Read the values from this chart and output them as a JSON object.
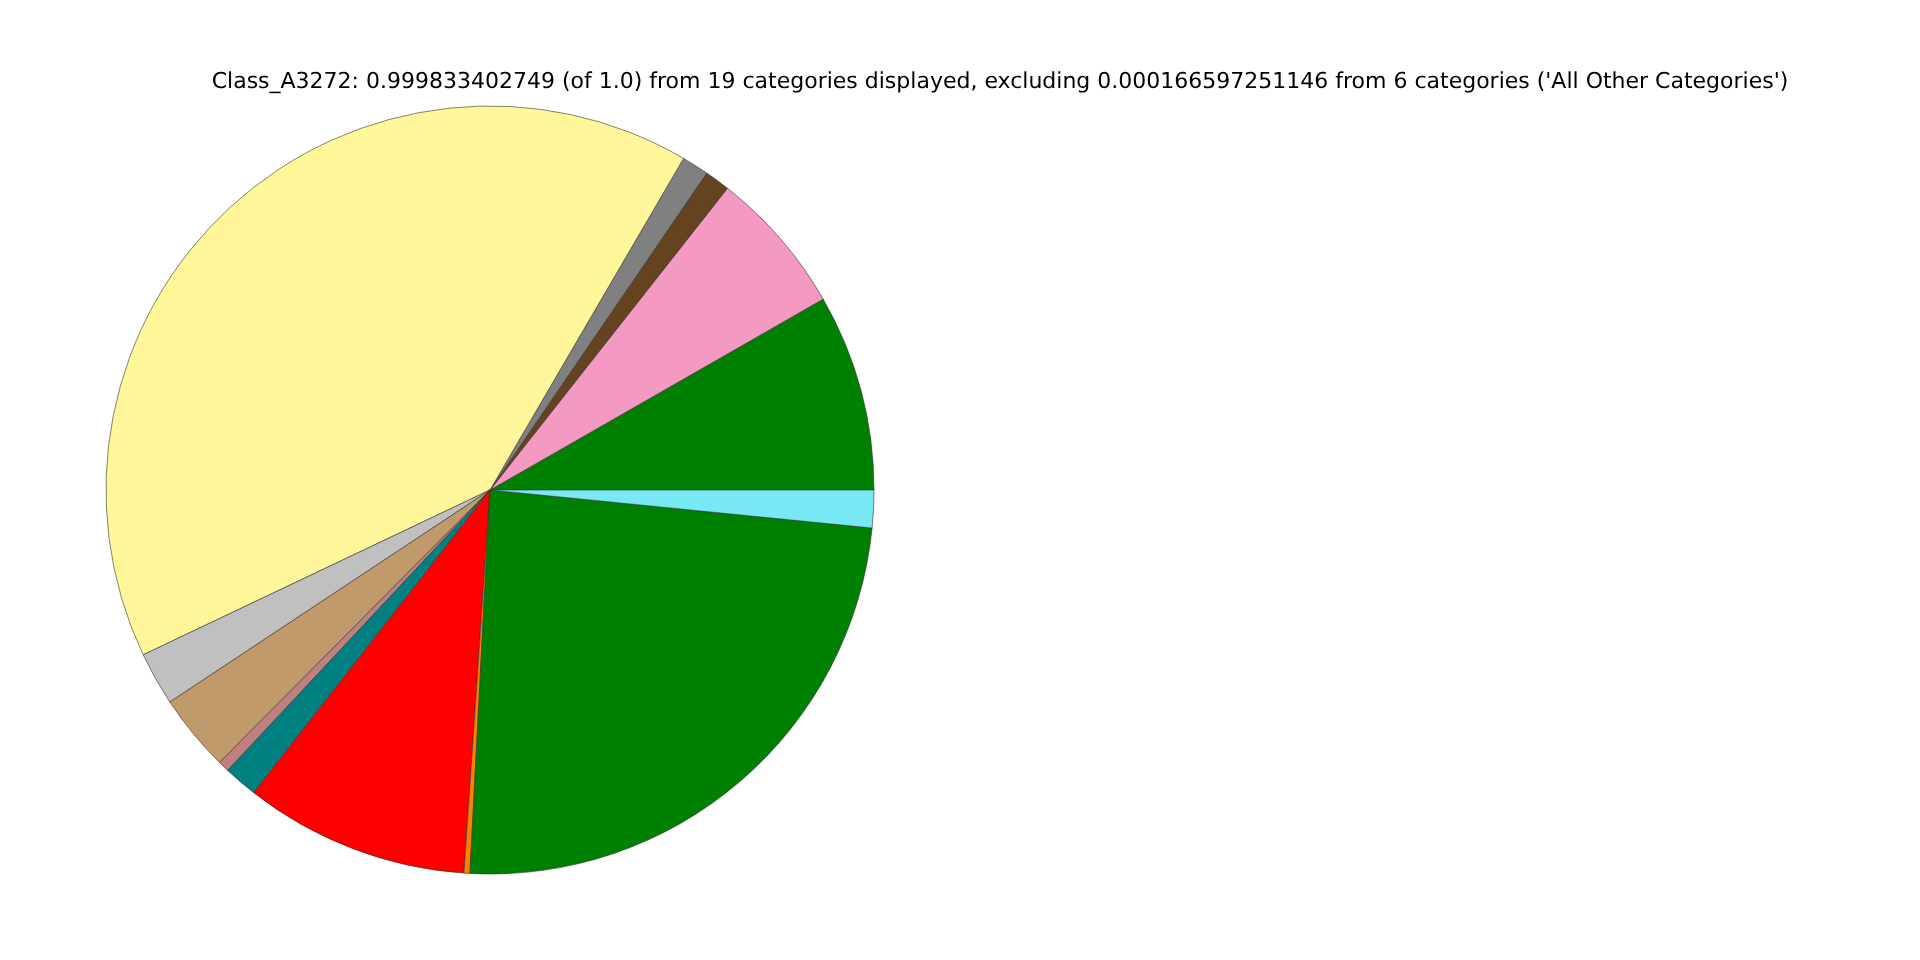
{
  "chart_data": {
    "type": "pie",
    "title": "Class_A3272: 0.999833402749 (of 1.0) from 19 categories displayed, excluding 0.000166597251146 from 6 categories ('All Other Categories')",
    "categories": [
      null,
      null,
      null,
      null,
      null,
      null,
      null,
      null,
      null,
      null,
      null,
      null,
      null
    ],
    "values": [
      8.28,
      6.11,
      1.06,
      1.14,
      40.47,
      2.25,
      3.25,
      0.47,
      1.42,
      9.47,
      0.25,
      24.25,
      1.58
    ],
    "colors": [
      "#008000",
      "#f49ac2",
      "#654321",
      "#808080",
      "#fff799",
      "#c0c0c0",
      "#c19a6b",
      "#c08081",
      "#008080",
      "#ff0000",
      "#ff7f00",
      "#008000",
      "#77e8f4"
    ]
  }
}
